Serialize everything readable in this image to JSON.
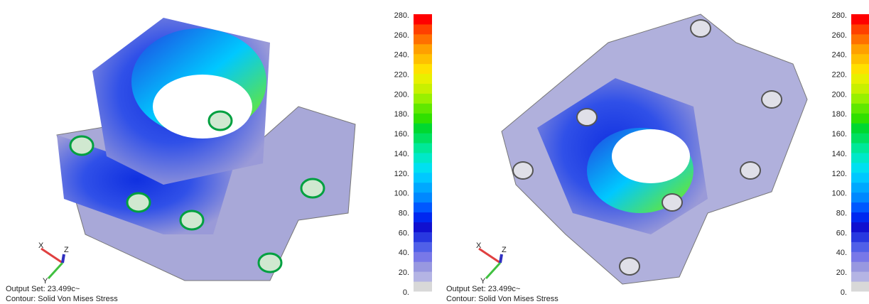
{
  "panels": [
    {
      "legend": {
        "labels": [
          "280.",
          "260.",
          "240.",
          "220.",
          "200.",
          "180.",
          "160.",
          "140.",
          "120.",
          "100.",
          "80.",
          "60.",
          "40.",
          "20.",
          "0."
        ]
      },
      "triad": {
        "x": "X",
        "y": "Y",
        "z": "Z"
      },
      "output_set": "Output Set: 23.499c~",
      "contour": "Contour: Solid Von Mises Stress"
    },
    {
      "legend": {
        "labels": [
          "280.",
          "260.",
          "240.",
          "220.",
          "200.",
          "180.",
          "160.",
          "140.",
          "120.",
          "100.",
          "80.",
          "60.",
          "40.",
          "20.",
          "0."
        ]
      },
      "triad": {
        "x": "X",
        "y": "Y",
        "z": "Z"
      },
      "output_set": "Output Set: 23.499c~",
      "contour": "Contour: Solid Von Mises Stress"
    }
  ]
}
